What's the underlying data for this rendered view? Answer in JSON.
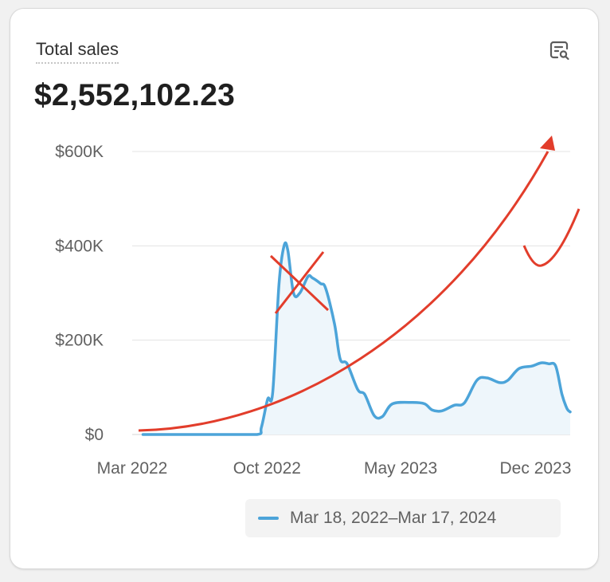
{
  "card": {
    "title": "Total sales",
    "total_value": "$2,552,102.23",
    "insights_icon": "report-search-icon"
  },
  "legend": {
    "label": "Mar 18, 2022–Mar 17, 2024"
  },
  "colors": {
    "series": "#4ca4d9",
    "series_fill": "#eef6fb",
    "annotation": "#e23d2b",
    "grid": "#e3e3e3"
  },
  "chart_data": {
    "type": "area",
    "title": "Total sales",
    "xlabel": "",
    "ylabel": "",
    "ylim": [
      0,
      600000
    ],
    "xlim": [
      "2022-03-18",
      "2024-03-17"
    ],
    "y_ticks": [
      {
        "value": 0,
        "label": "$0"
      },
      {
        "value": 200000,
        "label": "$200K"
      },
      {
        "value": 400000,
        "label": "$400K"
      },
      {
        "value": 600000,
        "label": "$600K"
      }
    ],
    "x_ticks": [
      {
        "value": "2022-03-01",
        "label": "Mar 2022"
      },
      {
        "value": "2022-10-01",
        "label": "Oct 2022"
      },
      {
        "value": "2023-05-01",
        "label": "May 2023"
      },
      {
        "value": "2023-12-01",
        "label": "Dec 2023"
      }
    ],
    "grid": true,
    "legend_position": "bottom-right",
    "series": [
      {
        "name": "Mar 18, 2022–Mar 17, 2024",
        "points": [
          [
            "2022-03-18",
            0
          ],
          [
            "2022-05-15",
            0
          ],
          [
            "2022-07-15",
            0
          ],
          [
            "2022-09-15",
            0
          ],
          [
            "2022-09-22",
            15000
          ],
          [
            "2022-10-02",
            75000
          ],
          [
            "2022-10-10",
            90000
          ],
          [
            "2022-10-20",
            320000
          ],
          [
            "2022-10-28",
            400000
          ],
          [
            "2022-11-03",
            390000
          ],
          [
            "2022-11-12",
            300000
          ],
          [
            "2022-11-22",
            300000
          ],
          [
            "2022-12-05",
            335000
          ],
          [
            "2022-12-12",
            332000
          ],
          [
            "2022-12-25",
            320000
          ],
          [
            "2023-01-02",
            310000
          ],
          [
            "2023-01-16",
            235000
          ],
          [
            "2023-01-25",
            160000
          ],
          [
            "2023-02-05",
            150000
          ],
          [
            "2023-02-22",
            95000
          ],
          [
            "2023-03-05",
            85000
          ],
          [
            "2023-03-20",
            40000
          ],
          [
            "2023-04-02",
            38000
          ],
          [
            "2023-04-18",
            65000
          ],
          [
            "2023-05-20",
            68000
          ],
          [
            "2023-06-08",
            65000
          ],
          [
            "2023-06-20",
            52000
          ],
          [
            "2023-07-05",
            50000
          ],
          [
            "2023-07-25",
            62000
          ],
          [
            "2023-08-10",
            67000
          ],
          [
            "2023-08-30",
            115000
          ],
          [
            "2023-09-15",
            120000
          ],
          [
            "2023-10-05",
            110000
          ],
          [
            "2023-10-18",
            115000
          ],
          [
            "2023-11-05",
            140000
          ],
          [
            "2023-11-25",
            145000
          ],
          [
            "2023-12-10",
            152000
          ],
          [
            "2023-12-22",
            150000
          ],
          [
            "2024-01-02",
            145000
          ],
          [
            "2024-01-12",
            85000
          ],
          [
            "2024-01-20",
            55000
          ],
          [
            "2024-01-25",
            48000
          ]
        ]
      }
    ]
  }
}
